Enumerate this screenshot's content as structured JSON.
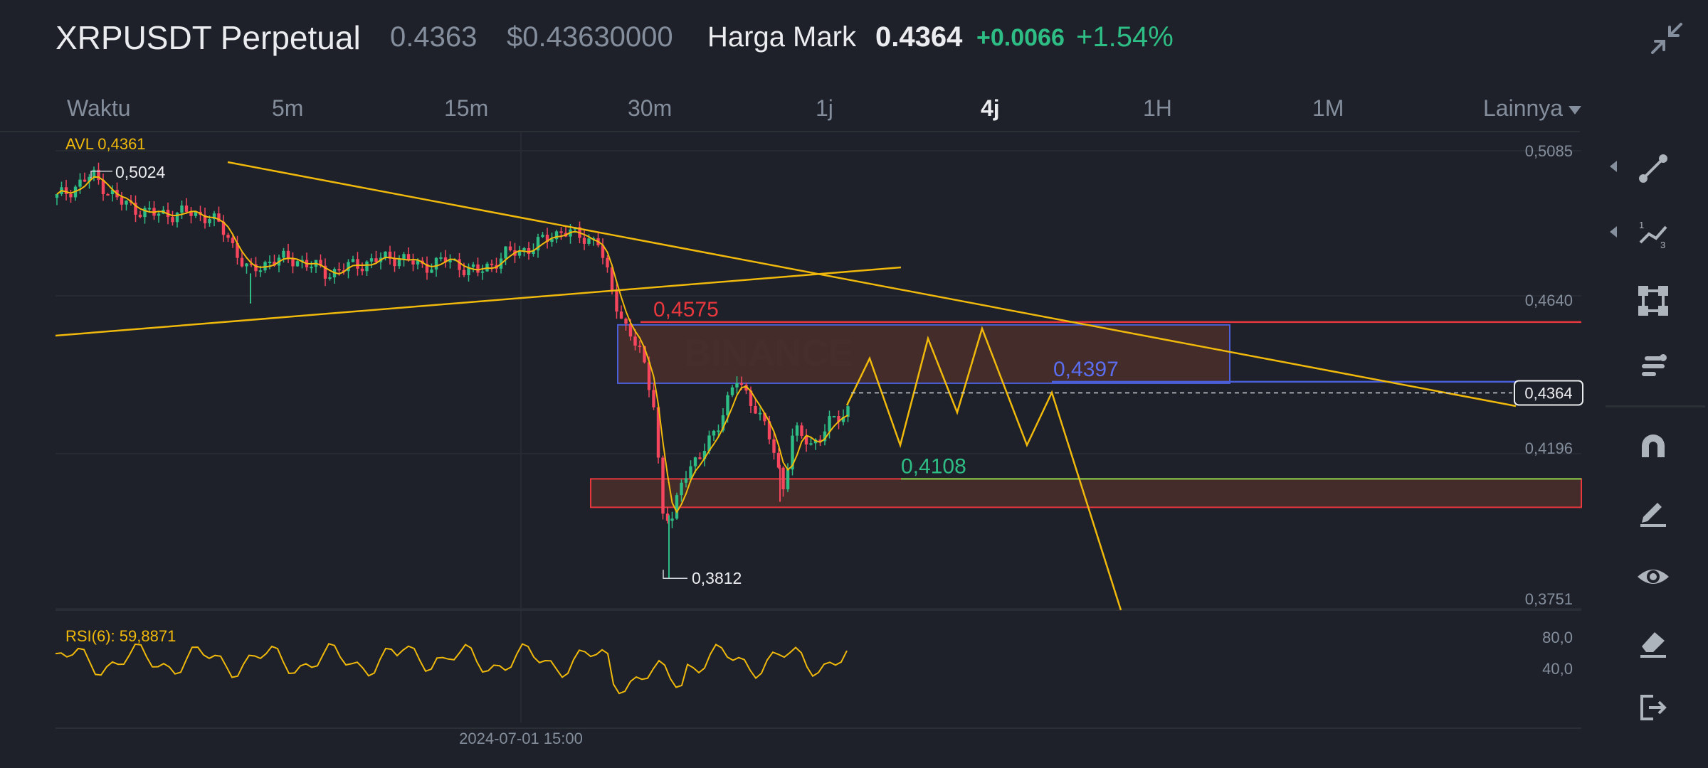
{
  "header": {
    "title": "XRPUSDT Perpetual",
    "last_price": "0.4363",
    "usd_price": "$0.43630000",
    "mark_label": "Harga Mark",
    "mark_value": "0.4364",
    "change": "+0.0066",
    "change_pct": "+1.54%",
    "collapse_icon": "collapse-arrows-icon"
  },
  "tabs": [
    "Waktu",
    "5m",
    "15m",
    "30m",
    "1j",
    "4j",
    "1H",
    "1M",
    "Lainnya"
  ],
  "active_tab": "4j",
  "indicators": {
    "avl": "AVL 0,4361",
    "rsi": "RSI(6): 59,8871"
  },
  "price_axis": [
    "0,5085",
    "0,4640",
    "0,4196",
    "0,3751"
  ],
  "current_price_tag": "0,4364",
  "rsi_axis": [
    "80,0",
    "40,0"
  ],
  "time_label": "2024-07-01 15:00",
  "annotations": {
    "high": "0,5024",
    "low": "0,3812",
    "level_red": "0,4575",
    "level_blue": "0,4397",
    "level_green": "0,4108"
  },
  "watermark": "BINANCE",
  "colors": {
    "background": "#1e2129",
    "up": "#2ebd85",
    "down": "#f6465d",
    "line_yellow": "#f0b90b",
    "line_red": "#e8383d",
    "line_blue": "#4a5fd8",
    "line_green": "#7cb342",
    "zone_fill": "#4a2e29"
  },
  "toolbar": [
    {
      "icon": "trendline-icon",
      "has_submenu": true
    },
    {
      "icon": "fibonacci-icon",
      "has_submenu": true
    },
    {
      "icon": "rectangle-icon",
      "has_submenu": false
    },
    {
      "icon": "position-icon",
      "has_submenu": false
    },
    {
      "icon": "magnet-icon",
      "has_submenu": false
    },
    {
      "icon": "pencil-icon",
      "has_submenu": false
    },
    {
      "icon": "eye-icon",
      "has_submenu": false
    },
    {
      "icon": "eraser-icon",
      "has_submenu": false
    },
    {
      "icon": "exit-icon",
      "has_submenu": false
    }
  ]
}
